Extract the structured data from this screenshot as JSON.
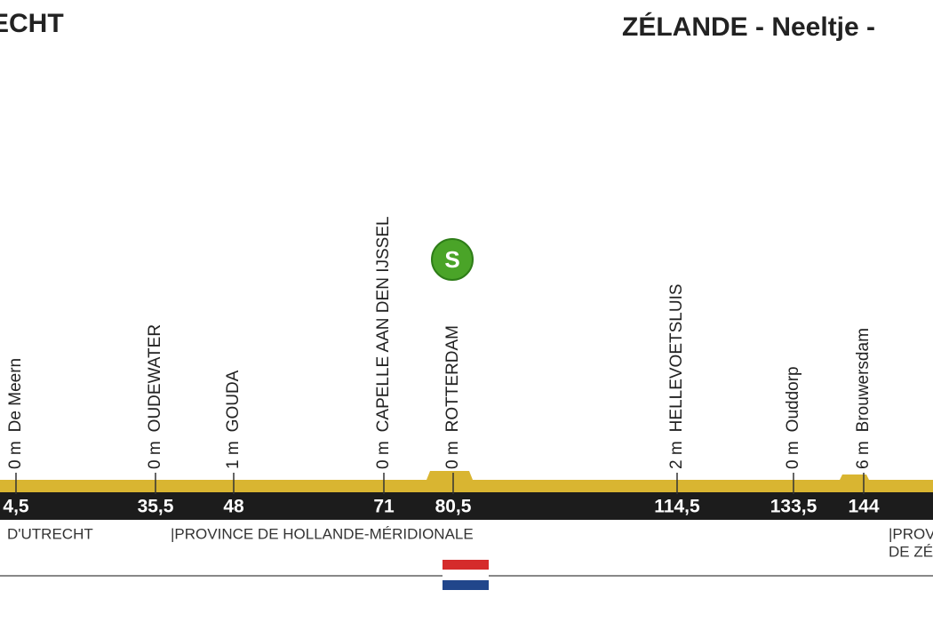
{
  "header": {
    "start": "ECHT",
    "finish": "ZÉLANDE - Neeltje -"
  },
  "points": [
    {
      "altitude": "0 m",
      "name": "De Meern",
      "km": "4,5"
    },
    {
      "altitude": "0 m",
      "name": "OUDEWATER",
      "km": "35,5"
    },
    {
      "altitude": "1 m",
      "name": "GOUDA",
      "km": "48"
    },
    {
      "altitude": "0 m",
      "name": "CAPELLE AAN DEN IJSSEL",
      "km": "71"
    },
    {
      "altitude": "0 m",
      "name": "ROTTERDAM",
      "km": "80,5"
    },
    {
      "altitude": "2 m",
      "name": "HELLEVOETSLUIS",
      "km": "114,5"
    },
    {
      "altitude": "0 m",
      "name": "Ouddorp",
      "km": "133,5"
    },
    {
      "altitude": "6 m",
      "name": "Brouwersdam",
      "km": "144"
    }
  ],
  "sprint": "S",
  "regions": [
    "D'UTRECHT",
    "|PROVINCE DE HOLLANDE-MÉRIDIONALE",
    "|PROV",
    "DE ZÉ"
  ]
}
